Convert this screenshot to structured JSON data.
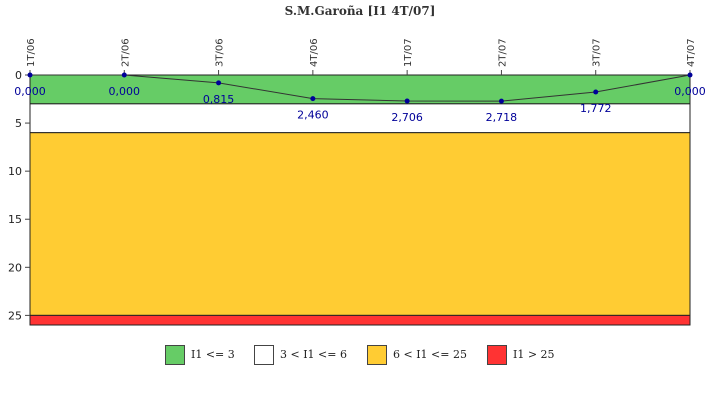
{
  "chart_data": {
    "type": "line",
    "title": "S.M.Garoña [I1 4T/07]",
    "xlabel": "",
    "ylabel": "",
    "categories": [
      "1T/06",
      "2T/06",
      "3T/06",
      "4T/06",
      "1T/07",
      "2T/07",
      "3T/07",
      "4T/07"
    ],
    "series": [
      {
        "values": [
          0.0,
          0.0,
          0.815,
          2.46,
          2.706,
          2.718,
          1.772,
          0.0
        ],
        "data_labels": [
          "0,000",
          "0,000",
          "0,815",
          "2,460",
          "2,706",
          "2,718",
          "1,772",
          "0,000"
        ],
        "color": "#333333",
        "marker_color": "#000099"
      }
    ],
    "ylim": [
      0,
      26
    ],
    "y_axis_inverted": true,
    "y_ticks": [
      0,
      5,
      10,
      15,
      20,
      25
    ],
    "y_tick_labels": [
      "0",
      "5",
      "10",
      "15",
      "20",
      "25"
    ],
    "grid": false,
    "bands": [
      {
        "from": 0,
        "to": 3,
        "color": "#66cc66",
        "label": "I1 <= 3"
      },
      {
        "from": 3,
        "to": 6,
        "color": "#ffffff",
        "label": "3 < I1 <= 6"
      },
      {
        "from": 6,
        "to": 25,
        "color": "#ffcc33",
        "label": "6 < I1 <= 25"
      },
      {
        "from": 25,
        "to": 26,
        "color": "#ff3333",
        "label": "I1 > 25"
      }
    ],
    "legend_position": "bottom",
    "data_label_color": "#000099"
  }
}
